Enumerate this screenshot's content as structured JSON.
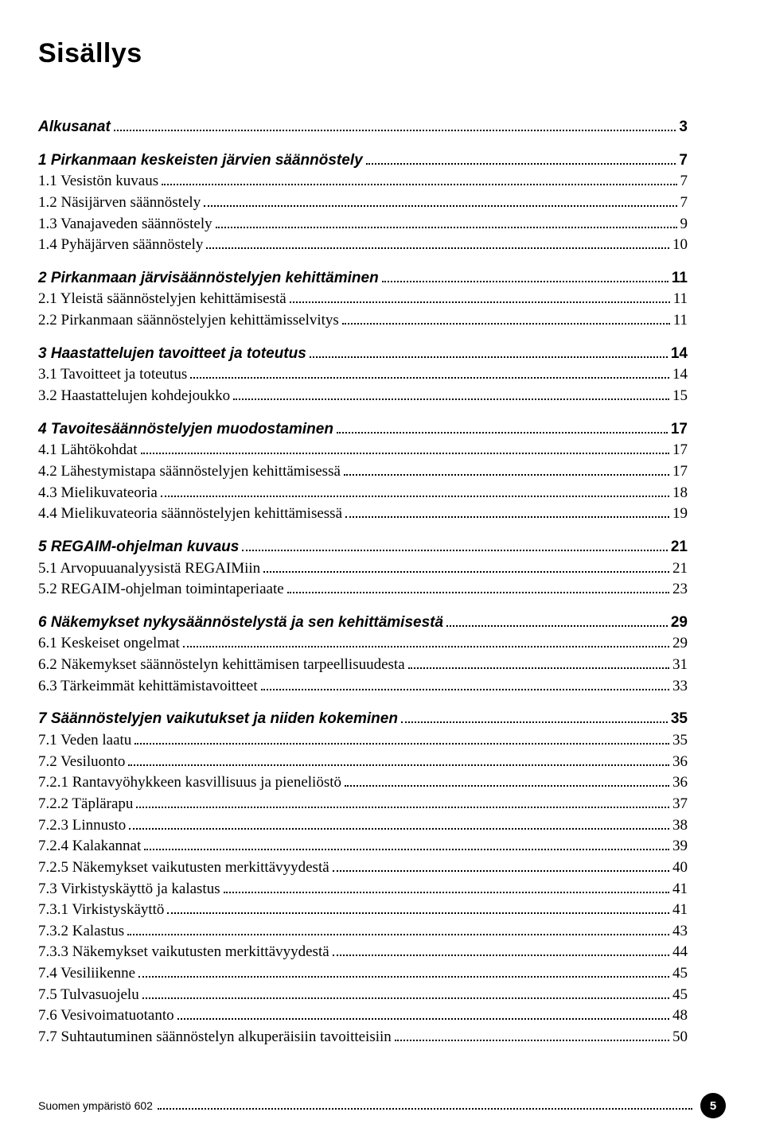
{
  "title": "Sisällys",
  "colors": {
    "text": "#000000",
    "background": "#ffffff"
  },
  "typography": {
    "title_fontsize": 34,
    "body_fontsize": 19,
    "title_weight": 900,
    "heading_style": "bold-italic-sans",
    "sub_style": "serif"
  },
  "toc": [
    {
      "label": "Alkusanat",
      "page": "3",
      "style": "bold-italic",
      "gap": false
    },
    {
      "label": "1 Pirkanmaan keskeisten järvien säännöstely",
      "page": "7",
      "style": "bold-italic",
      "gap": true
    },
    {
      "label": "1.1 Vesistön kuvaus",
      "page": "7",
      "style": "serif",
      "gap": false
    },
    {
      "label": "1.2 Näsijärven säännöstely",
      "page": "7",
      "style": "serif",
      "gap": false
    },
    {
      "label": "1.3 Vanajaveden säännöstely",
      "page": "9",
      "style": "serif",
      "gap": false
    },
    {
      "label": "1.4 Pyhäjärven säännöstely",
      "page": "10",
      "style": "serif",
      "gap": false
    },
    {
      "label": "2 Pirkanmaan järvisäännöstelyjen kehittäminen",
      "page": "11",
      "style": "bold-italic",
      "gap": true
    },
    {
      "label": "2.1 Yleistä säännöstelyjen kehittämisestä",
      "page": "11",
      "style": "serif",
      "gap": false
    },
    {
      "label": "2.2 Pirkanmaan säännöstelyjen kehittämisselvitys",
      "page": "11",
      "style": "serif",
      "gap": false
    },
    {
      "label": "3 Haastattelujen tavoitteet ja toteutus",
      "page": "14",
      "style": "bold-italic",
      "gap": true
    },
    {
      "label": "3.1 Tavoitteet ja toteutus",
      "page": "14",
      "style": "serif",
      "gap": false
    },
    {
      "label": "3.2 Haastattelujen kohdejoukko",
      "page": "15",
      "style": "serif",
      "gap": false
    },
    {
      "label": "4 Tavoitesäännöstelyjen muodostaminen",
      "page": "17",
      "style": "bold-italic",
      "gap": true
    },
    {
      "label": "4.1 Lähtökohdat",
      "page": "17",
      "style": "serif",
      "gap": false
    },
    {
      "label": "4.2 Lähestymistapa säännöstelyjen kehittämisessä",
      "page": "17",
      "style": "serif",
      "gap": false
    },
    {
      "label": "4.3 Mielikuvateoria",
      "page": "18",
      "style": "serif",
      "gap": false
    },
    {
      "label": "4.4 Mielikuvateoria säännöstelyjen kehittämisessä",
      "page": "19",
      "style": "serif",
      "gap": false
    },
    {
      "label": "5 REGAIM-ohjelman kuvaus",
      "page": "21",
      "style": "bold-italic",
      "gap": true
    },
    {
      "label": "5.1 Arvopuuanalyysistä REGAIMiin",
      "page": "21",
      "style": "serif",
      "gap": false
    },
    {
      "label": "5.2 REGAIM-ohjelman toimintaperiaate",
      "page": "23",
      "style": "serif",
      "gap": false
    },
    {
      "label": "6 Näkemykset nykysäännöstelystä ja sen kehittämisestä",
      "page": "29",
      "style": "bold-italic",
      "gap": true
    },
    {
      "label": "6.1 Keskeiset ongelmat",
      "page": "29",
      "style": "serif",
      "gap": false
    },
    {
      "label": "6.2 Näkemykset säännöstelyn kehittämisen tarpeellisuudesta",
      "page": "31",
      "style": "serif",
      "gap": false
    },
    {
      "label": "6.3 Tärkeimmät kehittämistavoitteet",
      "page": "33",
      "style": "serif",
      "gap": false
    },
    {
      "label": "7 Säännöstelyjen vaikutukset ja niiden kokeminen",
      "page": "35",
      "style": "bold-italic",
      "gap": true
    },
    {
      "label": "7.1 Veden laatu",
      "page": "35",
      "style": "serif",
      "gap": false
    },
    {
      "label": "7.2 Vesiluonto",
      "page": "36",
      "style": "serif",
      "gap": false
    },
    {
      "label": "7.2.1 Rantavyöhykkeen kasvillisuus ja pieneliöstö",
      "page": "36",
      "style": "serif",
      "gap": false
    },
    {
      "label": "7.2.2 Täplärapu",
      "page": "37",
      "style": "serif",
      "gap": false
    },
    {
      "label": "7.2.3 Linnusto",
      "page": "38",
      "style": "serif",
      "gap": false
    },
    {
      "label": "7.2.4 Kalakannat",
      "page": "39",
      "style": "serif",
      "gap": false
    },
    {
      "label": "7.2.5 Näkemykset vaikutusten merkittävyydestä",
      "page": "40",
      "style": "serif",
      "gap": false
    },
    {
      "label": "7.3 Virkistyskäyttö ja kalastus",
      "page": "41",
      "style": "serif",
      "gap": false
    },
    {
      "label": "7.3.1 Virkistyskäyttö",
      "page": "41",
      "style": "serif",
      "gap": false
    },
    {
      "label": "7.3.2 Kalastus",
      "page": "43",
      "style": "serif",
      "gap": false
    },
    {
      "label": "7.3.3 Näkemykset vaikutusten merkittävyydestä",
      "page": "44",
      "style": "serif",
      "gap": false
    },
    {
      "label": "7.4 Vesiliikenne",
      "page": "45",
      "style": "serif",
      "gap": false
    },
    {
      "label": "7.5 Tulvasuojelu",
      "page": "45",
      "style": "serif",
      "gap": false
    },
    {
      "label": "7.6 Vesivoimatuotanto",
      "page": "48",
      "style": "serif",
      "gap": false
    },
    {
      "label": "7.7 Suhtautuminen säännöstelyn alkuperäisiin tavoitteisiin",
      "page": "50",
      "style": "serif",
      "gap": false
    }
  ],
  "footer": {
    "label": "Suomen ympäristö 602",
    "page_number": "5"
  }
}
